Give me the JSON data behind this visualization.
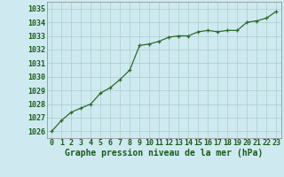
{
  "x_values": [
    0,
    1,
    2,
    3,
    4,
    5,
    6,
    7,
    8,
    9,
    10,
    11,
    12,
    13,
    14,
    15,
    16,
    17,
    18,
    19,
    20,
    21,
    22,
    23
  ],
  "y_values": [
    1026.0,
    1026.8,
    1027.4,
    1027.7,
    1028.0,
    1028.8,
    1029.2,
    1029.8,
    1030.5,
    1032.3,
    1032.4,
    1032.6,
    1032.9,
    1033.0,
    1033.0,
    1033.3,
    1033.4,
    1033.3,
    1033.4,
    1033.4,
    1034.0,
    1034.1,
    1034.3,
    1034.8
  ],
  "xlim": [
    -0.5,
    23.5
  ],
  "ylim": [
    1025.5,
    1035.5
  ],
  "yticks": [
    1026,
    1027,
    1028,
    1029,
    1030,
    1031,
    1032,
    1033,
    1034,
    1035
  ],
  "xticks": [
    0,
    1,
    2,
    3,
    4,
    5,
    6,
    7,
    8,
    9,
    10,
    11,
    12,
    13,
    14,
    15,
    16,
    17,
    18,
    19,
    20,
    21,
    22,
    23
  ],
  "xlabel": "Graphe pression niveau de la mer (hPa)",
  "line_color": "#2d6a2d",
  "marker": "+",
  "marker_size": 3,
  "bg_color": "#ceeaf0",
  "grid_color": "#aacccc",
  "label_color": "#1a5c1a",
  "xlabel_fontsize": 7,
  "tick_fontsize": 6,
  "linewidth": 0.9
}
